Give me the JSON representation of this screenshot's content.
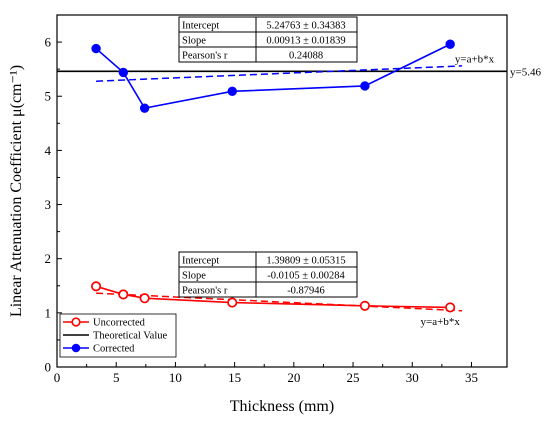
{
  "chart_data": {
    "type": "line",
    "xlabel": "Thickness (mm)",
    "ylabel": "Linear Attenuation Coefficient μ(cm⁻¹)",
    "xlim": [
      0,
      38
    ],
    "ylim": [
      0,
      6.5
    ],
    "xticks": [
      "0",
      "5",
      "10",
      "15",
      "20",
      "25",
      "30",
      "35"
    ],
    "yticks": [
      "0",
      "1",
      "2",
      "3",
      "4",
      "5",
      "6"
    ],
    "grid": false,
    "legend_position": "bottom-left",
    "series": [
      {
        "name": "Uncorrected",
        "color": "#ff0000",
        "marker": "hollow-circle",
        "x": [
          3.3,
          5.6,
          7.4,
          14.8,
          26.0,
          33.2
        ],
        "y": [
          1.49,
          1.34,
          1.27,
          1.19,
          1.13,
          1.1
        ]
      },
      {
        "name": "Theoretical Value",
        "color": "#000000",
        "type": "hline",
        "y": 5.46
      },
      {
        "name": "Corrected",
        "color": "#0000ff",
        "marker": "filled-circle",
        "x": [
          3.3,
          5.6,
          7.4,
          14.8,
          26.0,
          33.2
        ],
        "y": [
          5.88,
          5.44,
          4.78,
          5.09,
          5.19,
          5.96
        ]
      }
    ],
    "fits": [
      {
        "series": "Corrected",
        "color": "#0000ff",
        "intercept": 5.24763,
        "slope": 0.00913,
        "x_range": [
          3.3,
          33.2
        ],
        "label": "y=a+b*x"
      },
      {
        "series": "Uncorrected",
        "color": "#ff0000",
        "intercept": 1.39809,
        "slope": -0.0105,
        "x_range": [
          3.3,
          33.2
        ],
        "label": "y=a+b*x"
      }
    ],
    "stat_tables": [
      {
        "color": "#0000ff",
        "rows": [
          {
            "label": "Intercept",
            "value": "5.24763 ± 0.34383"
          },
          {
            "label": "Slope",
            "value": "0.00913 ± 0.01839"
          },
          {
            "label": "Pearson's r",
            "value": "0.24088"
          }
        ]
      },
      {
        "color": "#ff0000",
        "rows": [
          {
            "label": "Intercept",
            "value": "1.39809 ± 0.05315"
          },
          {
            "label": "Slope",
            "value": "-0.0105 ± 0.00284"
          },
          {
            "label": "Pearson's r",
            "value": "-0.87946"
          }
        ]
      }
    ],
    "annotations": {
      "hline_label": "y=5.46",
      "fit_label_top": "y=a+b*x",
      "fit_label_bottom": "y=a+b*x"
    }
  }
}
